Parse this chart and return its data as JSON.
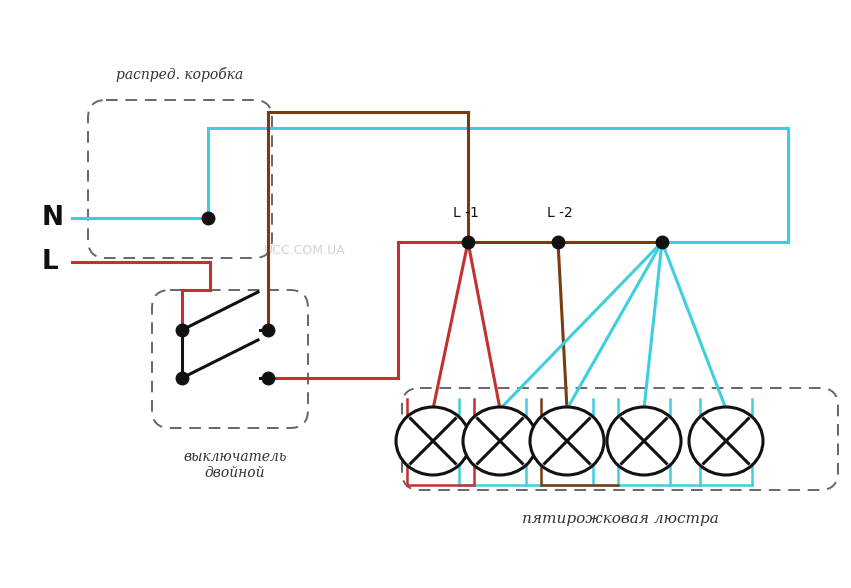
{
  "bg_color": "#ffffff",
  "cyan": "#3ecfdf",
  "red": "#c43030",
  "brown": "#7a3b10",
  "black": "#111111",
  "fig_width": 8.51,
  "fig_height": 5.88,
  "dpi": 100,
  "label_distbox": "распред. коробка",
  "label_switch1": "выключатель",
  "label_switch2": "двойной",
  "label_chandelier": "пятирожковая люстра",
  "label_watermark": "UCC.COM.UA",
  "label_N": "N",
  "label_L": "L",
  "label_L1": "L -1",
  "label_L2": "L -2"
}
